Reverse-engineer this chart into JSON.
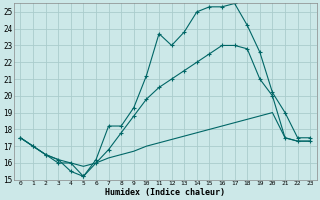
{
  "xlabel": "Humidex (Indice chaleur)",
  "bg_color": "#cce8e8",
  "grid_color": "#aacccc",
  "line_color": "#006666",
  "xlim": [
    -0.5,
    23.5
  ],
  "ylim": [
    15,
    25.5
  ],
  "xticks": [
    0,
    1,
    2,
    3,
    4,
    5,
    6,
    7,
    8,
    9,
    10,
    11,
    12,
    13,
    14,
    15,
    16,
    17,
    18,
    19,
    20,
    21,
    22,
    23
  ],
  "yticks": [
    15,
    16,
    17,
    18,
    19,
    20,
    21,
    22,
    23,
    24,
    25
  ],
  "series": [
    {
      "x": [
        0,
        1,
        2,
        3,
        4,
        5,
        6,
        7,
        8,
        9,
        10,
        11,
        12,
        13,
        14,
        15,
        16,
        17,
        18,
        19,
        20,
        21,
        22,
        23
      ],
      "y": [
        17.5,
        17.0,
        16.5,
        16.0,
        16.0,
        15.2,
        16.2,
        18.2,
        18.2,
        19.3,
        21.2,
        23.7,
        23.0,
        23.8,
        25.0,
        25.3,
        25.3,
        25.5,
        24.2,
        22.6,
        20.2,
        19.0,
        17.5,
        17.5
      ],
      "marker": true
    },
    {
      "x": [
        0,
        1,
        2,
        3,
        4,
        5,
        6,
        7,
        8,
        9,
        10,
        11,
        12,
        13,
        14,
        15,
        16,
        17,
        18,
        19,
        20,
        21,
        22,
        23
      ],
      "y": [
        17.5,
        17.0,
        16.5,
        16.2,
        15.5,
        15.2,
        16.0,
        16.8,
        17.8,
        18.8,
        19.8,
        20.5,
        21.0,
        21.5,
        22.0,
        22.5,
        23.0,
        23.0,
        22.8,
        21.0,
        20.0,
        17.5,
        17.3,
        17.3
      ],
      "marker": true
    },
    {
      "x": [
        0,
        1,
        2,
        3,
        4,
        5,
        6,
        7,
        8,
        9,
        10,
        11,
        12,
        13,
        14,
        15,
        16,
        17,
        18,
        19,
        20,
        21,
        22,
        23
      ],
      "y": [
        17.5,
        17.0,
        16.5,
        16.2,
        16.0,
        15.8,
        16.0,
        16.3,
        16.5,
        16.7,
        17.0,
        17.2,
        17.4,
        17.6,
        17.8,
        18.0,
        18.2,
        18.4,
        18.6,
        18.8,
        19.0,
        17.5,
        17.3,
        17.3
      ],
      "marker": false
    }
  ]
}
